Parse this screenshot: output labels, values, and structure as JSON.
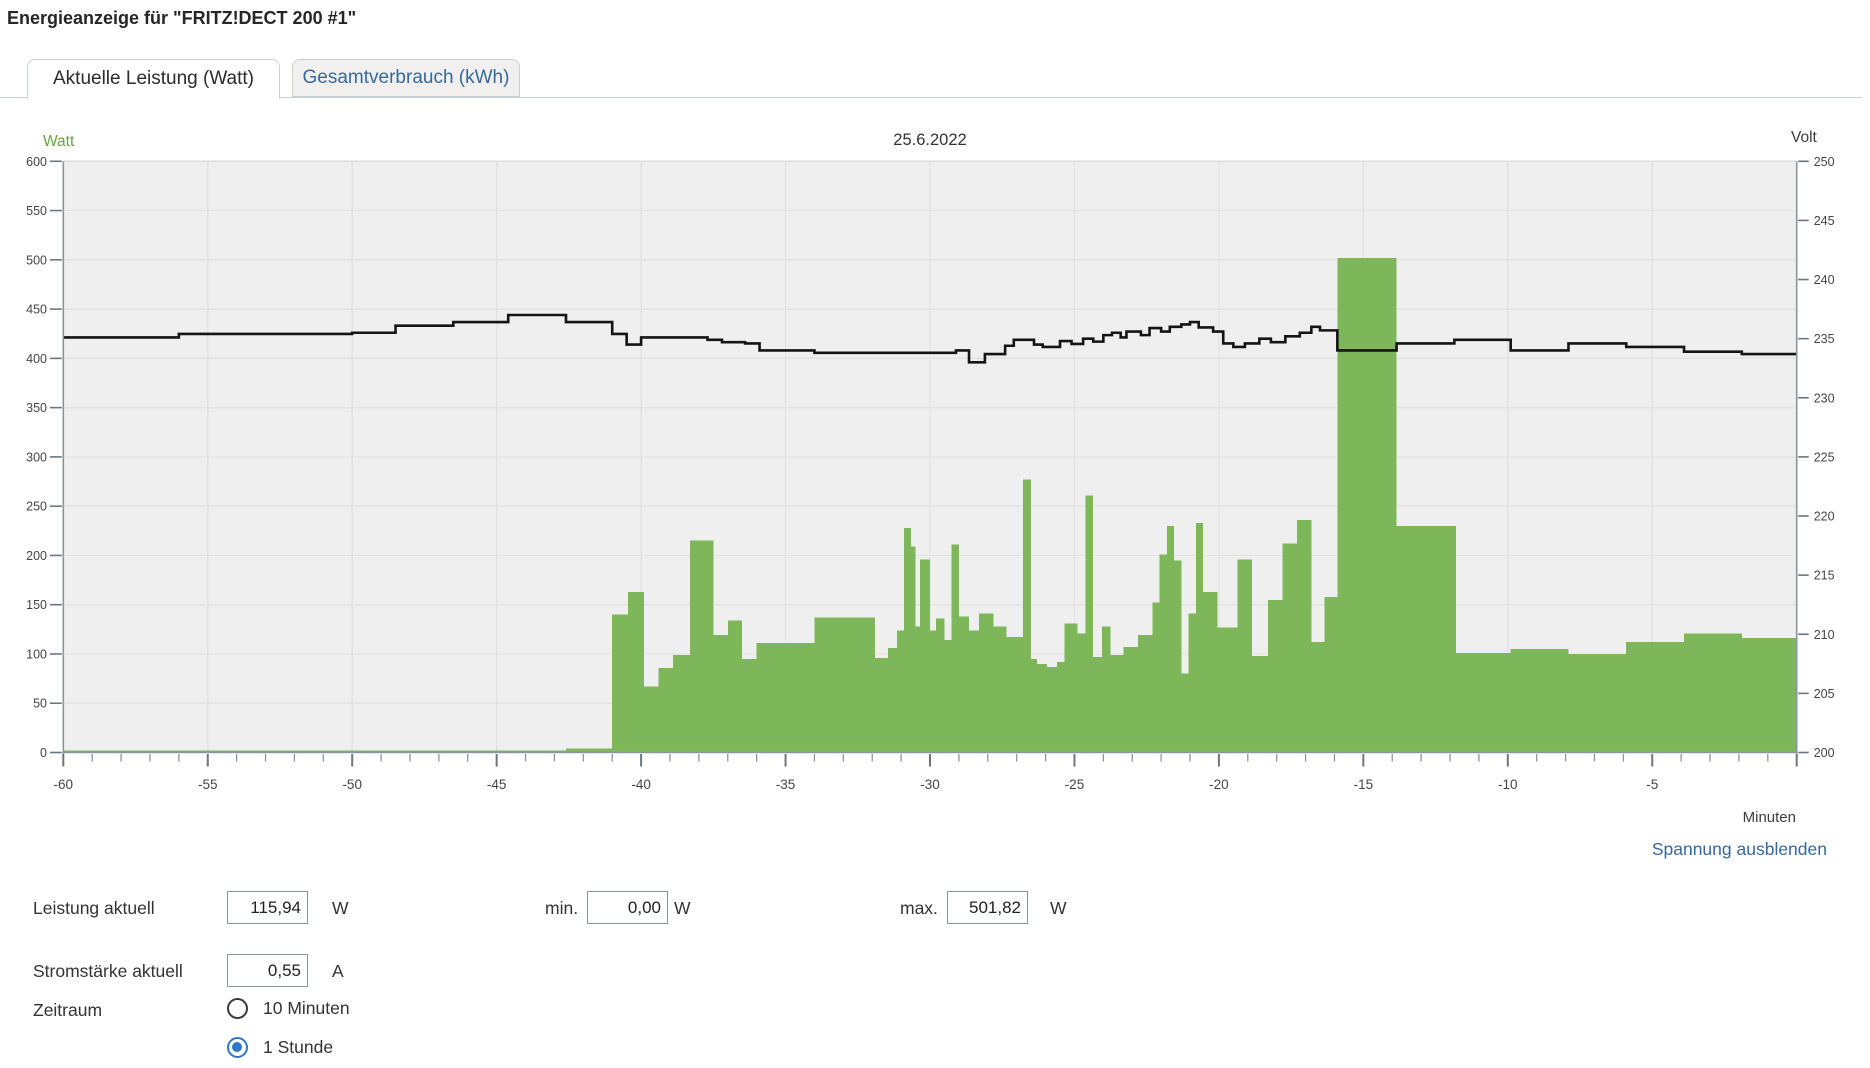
{
  "page": {
    "title": "Energieanzeige für \"FRITZ!DECT 200 #1\""
  },
  "tabs": [
    {
      "label": "Aktuelle Leistung (Watt)",
      "active": true
    },
    {
      "label": "Gesamtverbrauch (kWh)",
      "active": false
    }
  ],
  "chart_data": {
    "type": "bar",
    "subtype": "dual-axis bar histogram with voltage step line",
    "title": "25.6.2022",
    "grid": true,
    "legend": "none",
    "hide_voltage_link": "Spannung ausblenden",
    "colors": {
      "bar": "#7eb75a",
      "line": "#141414",
      "plot_bg": "#efefef",
      "grid": "#e2e2e2",
      "axis": "#8b959d",
      "tick": "#6b767f",
      "tick_text": "#454545",
      "watt_label": "#6aa33c",
      "link_blue": "#36699d"
    },
    "y_left": {
      "title": "Watt",
      "min": 0,
      "max": 600,
      "step": 50
    },
    "y_right": {
      "title": "Volt",
      "min": 200,
      "max": 250,
      "step": 5
    },
    "x": {
      "title": "Minuten",
      "min": -60,
      "max": 0,
      "label_step": 5,
      "minor_step": 1
    },
    "bars_note": "each [minute, watt] level holds until the next entry's minute; last holds to 0",
    "bars": [
      [
        -60,
        2
      ],
      [
        -42.6,
        4
      ],
      [
        -41.0,
        140
      ],
      [
        -40.45,
        163
      ],
      [
        -39.9,
        67
      ],
      [
        -39.4,
        86
      ],
      [
        -38.9,
        99
      ],
      [
        -38.3,
        215
      ],
      [
        -37.5,
        119
      ],
      [
        -37.0,
        134
      ],
      [
        -36.5,
        95
      ],
      [
        -36.0,
        111
      ],
      [
        -34.0,
        137
      ],
      [
        -31.9,
        96
      ],
      [
        -31.45,
        106
      ],
      [
        -31.15,
        124
      ],
      [
        -30.9,
        228
      ],
      [
        -30.65,
        209
      ],
      [
        -30.5,
        128
      ],
      [
        -30.35,
        196
      ],
      [
        -30.0,
        124
      ],
      [
        -29.8,
        136
      ],
      [
        -29.5,
        114
      ],
      [
        -29.25,
        211
      ],
      [
        -29.0,
        138
      ],
      [
        -28.65,
        124
      ],
      [
        -28.3,
        141
      ],
      [
        -27.8,
        128
      ],
      [
        -27.35,
        117
      ],
      [
        -26.78,
        277
      ],
      [
        -26.5,
        95
      ],
      [
        -26.3,
        90
      ],
      [
        -25.95,
        87
      ],
      [
        -25.6,
        92
      ],
      [
        -25.35,
        131
      ],
      [
        -24.9,
        121
      ],
      [
        -24.62,
        261
      ],
      [
        -24.35,
        97
      ],
      [
        -24.05,
        128
      ],
      [
        -23.75,
        99
      ],
      [
        -23.3,
        107
      ],
      [
        -22.8,
        119
      ],
      [
        -22.3,
        152
      ],
      [
        -22.05,
        201
      ],
      [
        -21.8,
        230
      ],
      [
        -21.55,
        195
      ],
      [
        -21.3,
        80
      ],
      [
        -21.05,
        141
      ],
      [
        -20.8,
        233
      ],
      [
        -20.55,
        163
      ],
      [
        -20.05,
        127
      ],
      [
        -19.35,
        196
      ],
      [
        -18.85,
        98
      ],
      [
        -18.3,
        155
      ],
      [
        -17.8,
        212
      ],
      [
        -17.3,
        236
      ],
      [
        -16.8,
        112
      ],
      [
        -16.35,
        158
      ],
      [
        -15.9,
        502
      ],
      [
        -13.85,
        230
      ],
      [
        -11.8,
        101
      ],
      [
        -9.9,
        105
      ],
      [
        -7.9,
        100
      ],
      [
        -5.9,
        112
      ],
      [
        -3.9,
        121
      ],
      [
        -1.9,
        116
      ]
    ],
    "voltage_note": "step line on right axis; each [minute, volt] level holds until next entry",
    "voltage": [
      [
        -60,
        235.1
      ],
      [
        -56,
        235.4
      ],
      [
        -50,
        235.5
      ],
      [
        -48.5,
        236.1
      ],
      [
        -46.5,
        236.4
      ],
      [
        -44.6,
        237.0
      ],
      [
        -42.6,
        236.4
      ],
      [
        -41.0,
        235.4
      ],
      [
        -40.5,
        234.5
      ],
      [
        -40.0,
        235.1
      ],
      [
        -37.7,
        234.9
      ],
      [
        -37.2,
        234.7
      ],
      [
        -36.4,
        234.6
      ],
      [
        -35.9,
        234.0
      ],
      [
        -34.0,
        233.8
      ],
      [
        -29.1,
        234.0
      ],
      [
        -28.65,
        233.0
      ],
      [
        -28.1,
        233.7
      ],
      [
        -27.4,
        234.4
      ],
      [
        -27.1,
        234.9
      ],
      [
        -26.4,
        234.5
      ],
      [
        -26.1,
        234.3
      ],
      [
        -25.5,
        234.8
      ],
      [
        -25.1,
        234.55
      ],
      [
        -24.7,
        235.0
      ],
      [
        -24.35,
        234.75
      ],
      [
        -24.0,
        235.3
      ],
      [
        -23.7,
        235.5
      ],
      [
        -23.4,
        235.1
      ],
      [
        -23.2,
        235.6
      ],
      [
        -22.7,
        235.3
      ],
      [
        -22.4,
        235.9
      ],
      [
        -22.0,
        235.6
      ],
      [
        -21.7,
        236.0
      ],
      [
        -21.3,
        236.2
      ],
      [
        -21.0,
        236.4
      ],
      [
        -20.7,
        235.95
      ],
      [
        -20.2,
        235.6
      ],
      [
        -19.85,
        234.6
      ],
      [
        -19.5,
        234.3
      ],
      [
        -19.1,
        234.6
      ],
      [
        -18.6,
        235.0
      ],
      [
        -18.2,
        234.7
      ],
      [
        -17.7,
        235.2
      ],
      [
        -17.2,
        235.5
      ],
      [
        -16.8,
        236.0
      ],
      [
        -16.5,
        235.7
      ],
      [
        -15.9,
        234.0
      ],
      [
        -13.85,
        234.6
      ],
      [
        -11.85,
        234.9
      ],
      [
        -9.9,
        234.0
      ],
      [
        -7.9,
        234.6
      ],
      [
        -5.9,
        234.3
      ],
      [
        -3.9,
        233.9
      ],
      [
        -1.9,
        233.7
      ]
    ]
  },
  "controls": {
    "power": {
      "label": "Leistung aktuell",
      "value": "115,94",
      "unit": "W"
    },
    "min": {
      "label": "min.",
      "value": "0,00",
      "unit": "W"
    },
    "max": {
      "label": "max.",
      "value": "501,82",
      "unit": "W"
    },
    "current": {
      "label": "Stromstärke aktuell",
      "value": "0,55",
      "unit": "A"
    },
    "period": {
      "label": "Zeitraum",
      "options": [
        {
          "label": "10 Minuten",
          "selected": false
        },
        {
          "label": "1 Stunde",
          "selected": true
        }
      ]
    }
  }
}
